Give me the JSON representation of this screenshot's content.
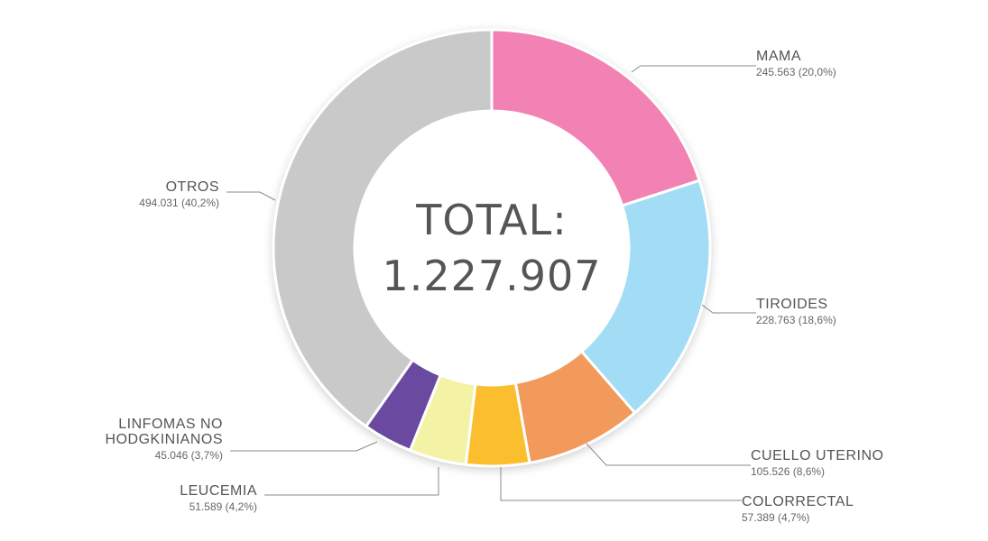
{
  "chart_data": {
    "type": "pie",
    "center_label": [
      "TOTAL:",
      "1.227.907"
    ],
    "slices": [
      {
        "name": [
          "MAMA"
        ],
        "value_text": "245.563 (20,0%)",
        "value": 245563,
        "percent": 20.0,
        "color": "#f182b3"
      },
      {
        "name": [
          "TIROIDES"
        ],
        "value_text": "228.763 (18,6%)",
        "value": 228763,
        "percent": 18.6,
        "color": "#a3dcf5"
      },
      {
        "name": [
          "CUELLO UTERINO"
        ],
        "value_text": "105.526 (8,6%)",
        "value": 105526,
        "percent": 8.6,
        "color": "#f19a5c"
      },
      {
        "name": [
          "COLORRECTAL"
        ],
        "value_text": "57.389 (4,7%)",
        "value": 57389,
        "percent": 4.7,
        "color": "#fbbe2e"
      },
      {
        "name": [
          "LEUCEMIA"
        ],
        "value_text": "51.589 (4,2%)",
        "value": 51589,
        "percent": 4.2,
        "color": "#f4f2a5"
      },
      {
        "name": [
          "LINFOMAS NO",
          "HODGKINIANOS"
        ],
        "value_text": "45.046 (3,7%)",
        "value": 45046,
        "percent": 3.7,
        "color": "#6a4aa0"
      },
      {
        "name": [
          "OTROS"
        ],
        "value_text": "494.031 (40,2%)",
        "value": 494031,
        "percent": 40.2,
        "color": "#c9c9c9"
      }
    ]
  }
}
